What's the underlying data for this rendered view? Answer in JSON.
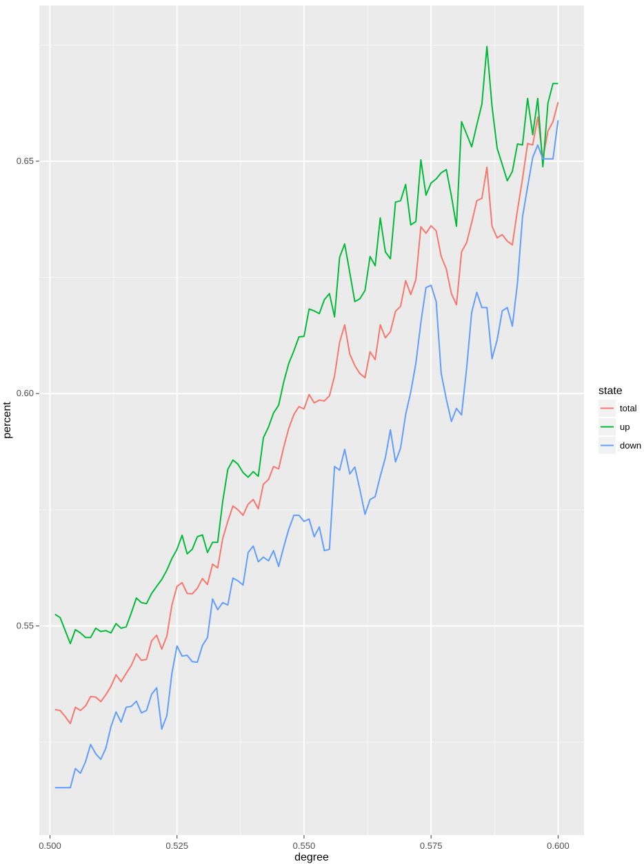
{
  "chart_data": {
    "type": "line",
    "xlabel": "degree",
    "ylabel": "percent",
    "xlim": [
      0.4979,
      0.6051
    ],
    "ylim": [
      0.505,
      0.6835
    ],
    "xticks": [
      0.5,
      0.525,
      0.55,
      0.575,
      0.6
    ],
    "xtick_labels": [
      "0.500",
      "0.525",
      "0.550",
      "0.575",
      "0.600"
    ],
    "yticks": [
      0.55,
      0.6,
      0.65
    ],
    "ytick_labels": [
      "0.55",
      "0.60",
      "0.65"
    ],
    "grid": true,
    "legend": {
      "title": "state",
      "placement": "right"
    },
    "x": [
      0.501,
      0.502,
      0.503,
      0.504,
      0.505,
      0.506,
      0.507,
      0.508,
      0.509,
      0.51,
      0.511,
      0.512,
      0.513,
      0.514,
      0.515,
      0.516,
      0.517,
      0.518,
      0.519,
      0.52,
      0.521,
      0.522,
      0.523,
      0.524,
      0.525,
      0.526,
      0.527,
      0.528,
      0.529,
      0.53,
      0.531,
      0.532,
      0.533,
      0.534,
      0.535,
      0.536,
      0.537,
      0.538,
      0.539,
      0.54,
      0.541,
      0.542,
      0.543,
      0.544,
      0.545,
      0.546,
      0.547,
      0.548,
      0.549,
      0.55,
      0.551,
      0.552,
      0.553,
      0.554,
      0.555,
      0.556,
      0.557,
      0.558,
      0.559,
      0.56,
      0.561,
      0.562,
      0.563,
      0.564,
      0.565,
      0.566,
      0.567,
      0.568,
      0.569,
      0.57,
      0.571,
      0.572,
      0.573,
      0.574,
      0.575,
      0.576,
      0.577,
      0.578,
      0.579,
      0.58,
      0.581,
      0.582,
      0.583,
      0.584,
      0.585,
      0.586,
      0.587,
      0.588,
      0.589,
      0.59,
      0.591,
      0.592,
      0.593,
      0.594,
      0.595,
      0.596,
      0.597,
      0.598,
      0.599,
      0.6
    ],
    "series": [
      {
        "name": "total",
        "color": "#F8766D",
        "values": [
          0.532,
          0.5318,
          0.5305,
          0.529,
          0.5325,
          0.5318,
          0.5328,
          0.5348,
          0.5347,
          0.5337,
          0.5352,
          0.537,
          0.5395,
          0.538,
          0.5398,
          0.5415,
          0.544,
          0.5426,
          0.5428,
          0.5468,
          0.548,
          0.545,
          0.5478,
          0.5545,
          0.5585,
          0.5593,
          0.557,
          0.5569,
          0.5581,
          0.5602,
          0.5589,
          0.5633,
          0.5625,
          0.5688,
          0.5725,
          0.5758,
          0.575,
          0.5738,
          0.5762,
          0.5772,
          0.5752,
          0.5805,
          0.5815,
          0.5843,
          0.5838,
          0.5885,
          0.5925,
          0.5955,
          0.5972,
          0.5967,
          0.5998,
          0.598,
          0.5986,
          0.5984,
          0.5995,
          0.6038,
          0.611,
          0.6148,
          0.6085,
          0.606,
          0.6043,
          0.6034,
          0.609,
          0.6073,
          0.6148,
          0.612,
          0.6133,
          0.6177,
          0.6188,
          0.6243,
          0.6213,
          0.6245,
          0.6359,
          0.6345,
          0.6361,
          0.635,
          0.6295,
          0.6268,
          0.6215,
          0.6191,
          0.6305,
          0.6325,
          0.6368,
          0.6415,
          0.642,
          0.6487,
          0.636,
          0.6335,
          0.6342,
          0.6328,
          0.632,
          0.6395,
          0.6462,
          0.6538,
          0.6535,
          0.6595,
          0.6505,
          0.6565,
          0.6585,
          0.6627
        ]
      },
      {
        "name": "up",
        "color": "#00BA38",
        "values": [
          0.5525,
          0.5518,
          0.549,
          0.5462,
          0.5492,
          0.5485,
          0.5475,
          0.5475,
          0.5495,
          0.5488,
          0.549,
          0.5485,
          0.5505,
          0.5495,
          0.5498,
          0.5528,
          0.556,
          0.555,
          0.5548,
          0.557,
          0.5585,
          0.56,
          0.562,
          0.5645,
          0.5665,
          0.5695,
          0.5655,
          0.5665,
          0.5692,
          0.5696,
          0.5658,
          0.568,
          0.568,
          0.5768,
          0.5837,
          0.5857,
          0.5848,
          0.583,
          0.582,
          0.5832,
          0.5822,
          0.5905,
          0.5928,
          0.5958,
          0.5975,
          0.6025,
          0.6065,
          0.6092,
          0.6122,
          0.6123,
          0.6182,
          0.6178,
          0.6172,
          0.6202,
          0.6215,
          0.6165,
          0.6293,
          0.6322,
          0.626,
          0.6198,
          0.6204,
          0.6222,
          0.6295,
          0.6275,
          0.6378,
          0.6305,
          0.629,
          0.6412,
          0.6415,
          0.645,
          0.6363,
          0.637,
          0.6503,
          0.6427,
          0.6453,
          0.6462,
          0.6475,
          0.6482,
          0.6425,
          0.636,
          0.6585,
          0.6558,
          0.6531,
          0.6578,
          0.6623,
          0.6747,
          0.6618,
          0.6528,
          0.6493,
          0.6458,
          0.6478,
          0.6537,
          0.6535,
          0.6635,
          0.6557,
          0.6635,
          0.6488,
          0.6625,
          0.6667,
          0.6667
        ]
      },
      {
        "name": "down",
        "color": "#619CFF",
        "values": [
          0.5152,
          0.5152,
          0.5152,
          0.5152,
          0.5193,
          0.5183,
          0.5208,
          0.5245,
          0.5225,
          0.5213,
          0.5237,
          0.5283,
          0.5315,
          0.5293,
          0.5325,
          0.5327,
          0.5338,
          0.5313,
          0.5318,
          0.5353,
          0.5367,
          0.5278,
          0.5307,
          0.5398,
          0.5457,
          0.5435,
          0.5437,
          0.5423,
          0.5422,
          0.5458,
          0.5475,
          0.5558,
          0.5535,
          0.555,
          0.5545,
          0.5603,
          0.5597,
          0.5588,
          0.5658,
          0.5672,
          0.5638,
          0.5648,
          0.564,
          0.5662,
          0.5628,
          0.567,
          0.5708,
          0.5738,
          0.5738,
          0.5725,
          0.573,
          0.5692,
          0.5713,
          0.5662,
          0.5665,
          0.5843,
          0.5835,
          0.588,
          0.5827,
          0.5842,
          0.5793,
          0.574,
          0.5772,
          0.5778,
          0.5822,
          0.5862,
          0.5922,
          0.5853,
          0.5883,
          0.5955,
          0.6003,
          0.6065,
          0.6153,
          0.6228,
          0.6233,
          0.6198,
          0.6043,
          0.5988,
          0.594,
          0.5968,
          0.5954,
          0.6055,
          0.6175,
          0.6218,
          0.6185,
          0.6185,
          0.6075,
          0.6115,
          0.6178,
          0.6185,
          0.6145,
          0.6238,
          0.638,
          0.6445,
          0.6508,
          0.6535,
          0.6505,
          0.6505,
          0.6505,
          0.6588
        ]
      }
    ]
  }
}
